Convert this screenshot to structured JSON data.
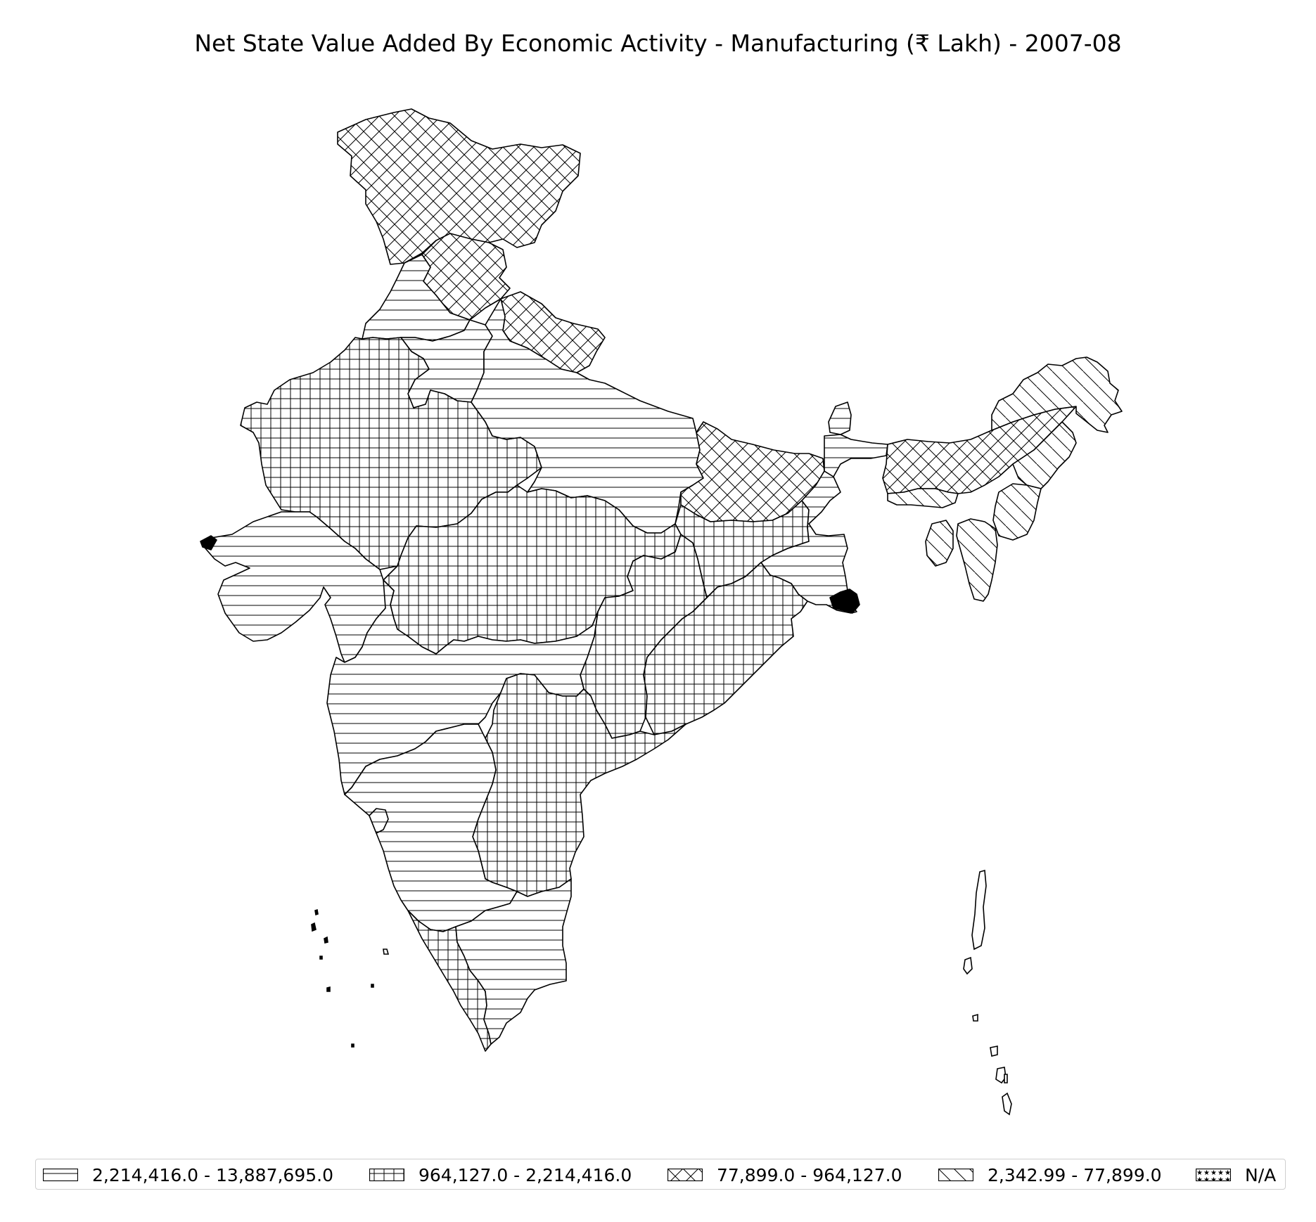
{
  "title": "Net State Value Added By Economic Activity - Manufacturing (₹ Lakh) - 2007-08",
  "legend": [
    {
      "label": "2,214,416.0 - 13,887,695.0",
      "pattern": "horizontal"
    },
    {
      "label": "964,127.0 - 2,214,416.0",
      "pattern": "grid"
    },
    {
      "label": "77,899.0 - 964,127.0",
      "pattern": "crosshatch"
    },
    {
      "label": "2,342.99 - 77,899.0",
      "pattern": "diagonal"
    },
    {
      "label": "N/A",
      "pattern": "stars"
    }
  ],
  "colors": {
    "stroke": "#000000",
    "background": "#ffffff",
    "legend_border": "#cfcfcf"
  },
  "regions": [
    {
      "name": "Jammu & Kashmir",
      "class": "77,899.0 - 964,127.0"
    },
    {
      "name": "Himachal Pradesh",
      "class": "77,899.0 - 964,127.0"
    },
    {
      "name": "Uttarakhand",
      "class": "77,899.0 - 964,127.0"
    },
    {
      "name": "Punjab",
      "class": "2,214,416.0 - 13,887,695.0"
    },
    {
      "name": "Haryana",
      "class": "2,214,416.0 - 13,887,695.0"
    },
    {
      "name": "Rajasthan",
      "class": "964,127.0 - 2,214,416.0"
    },
    {
      "name": "Uttar Pradesh",
      "class": "2,214,416.0 - 13,887,695.0"
    },
    {
      "name": "Bihar",
      "class": "77,899.0 - 964,127.0"
    },
    {
      "name": "Gujarat",
      "class": "2,214,416.0 - 13,887,695.0"
    },
    {
      "name": "Madhya Pradesh",
      "class": "964,127.0 - 2,214,416.0"
    },
    {
      "name": "Chhattisgarh",
      "class": "964,127.0 - 2,214,416.0"
    },
    {
      "name": "Jharkhand",
      "class": "964,127.0 - 2,214,416.0"
    },
    {
      "name": "West Bengal",
      "class": "2,214,416.0 - 13,887,695.0"
    },
    {
      "name": "Odisha",
      "class": "964,127.0 - 2,214,416.0"
    },
    {
      "name": "Maharashtra",
      "class": "2,214,416.0 - 13,887,695.0"
    },
    {
      "name": "Andhra Pradesh",
      "class": "964,127.0 - 2,214,416.0"
    },
    {
      "name": "Karnataka",
      "class": "2,214,416.0 - 13,887,695.0"
    },
    {
      "name": "Goa",
      "class": "2,214,416.0 - 13,887,695.0"
    },
    {
      "name": "Kerala",
      "class": "964,127.0 - 2,214,416.0"
    },
    {
      "name": "Tamil Nadu",
      "class": "2,214,416.0 - 13,887,695.0"
    },
    {
      "name": "Sikkim",
      "class": "2,214,416.0 - 13,887,695.0"
    },
    {
      "name": "Assam",
      "class": "77,899.0 - 964,127.0"
    },
    {
      "name": "Arunachal Pradesh",
      "class": "2,342.99 - 77,899.0"
    },
    {
      "name": "Nagaland",
      "class": "2,342.99 - 77,899.0"
    },
    {
      "name": "Manipur",
      "class": "2,342.99 - 77,899.0"
    },
    {
      "name": "Mizoram",
      "class": "2,342.99 - 77,899.0"
    },
    {
      "name": "Tripura",
      "class": "2,342.99 - 77,899.0"
    },
    {
      "name": "Meghalaya",
      "class": "2,342.99 - 77,899.0"
    }
  ]
}
